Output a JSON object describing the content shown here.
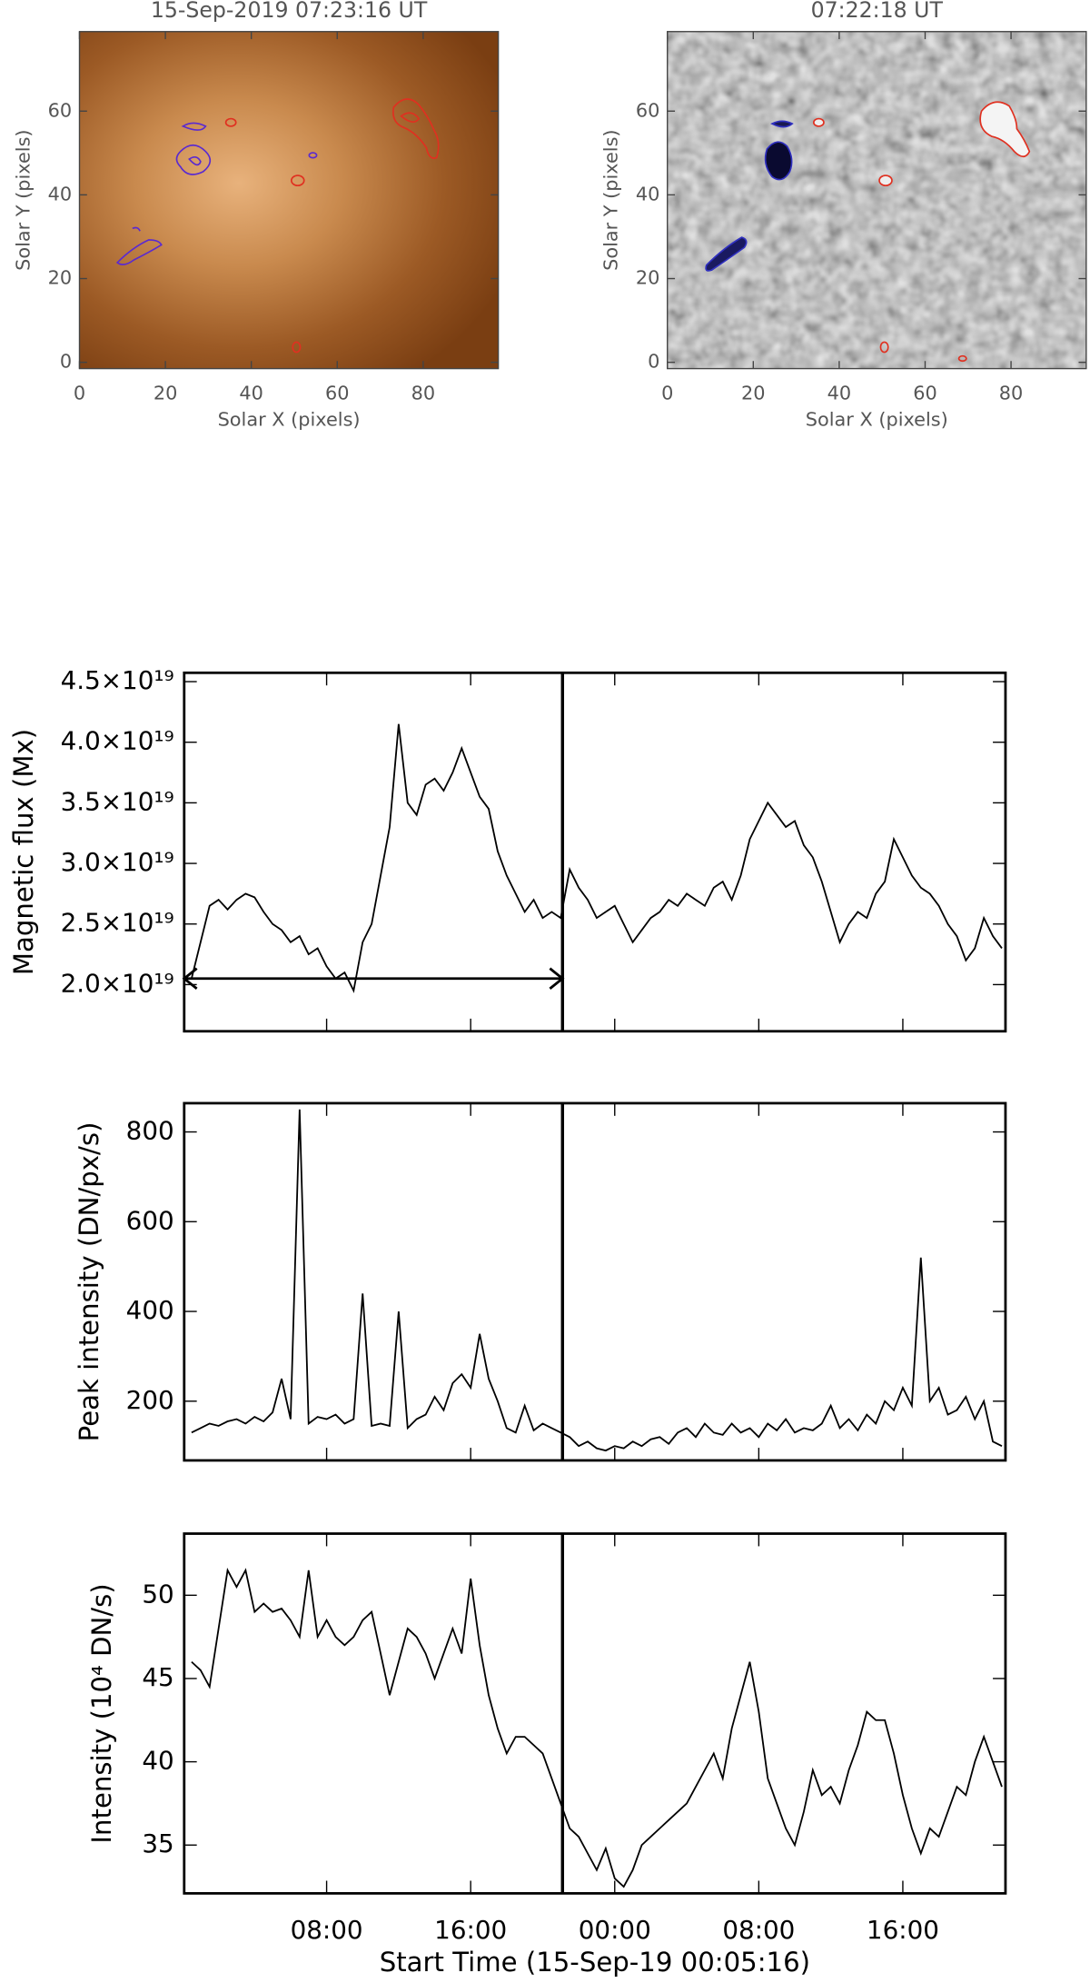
{
  "chart_data": [
    {
      "type": "image",
      "title": "15-Sep-2019 07:23:16 UT",
      "colormap": "copper",
      "xlabel": "Solar X (pixels)",
      "ylabel": "Solar Y (pixels)",
      "xlim": [
        0,
        97.5
      ],
      "ylim": [
        -1.5,
        79
      ],
      "xticks": [
        0,
        20,
        40,
        60,
        80
      ],
      "yticks": [
        0,
        20,
        40,
        60
      ]
    },
    {
      "type": "image",
      "title": "07:22:18 UT",
      "colormap": "gray",
      "xlabel": "Solar X (pixels)",
      "ylabel": "Solar Y (pixels)",
      "xlim": [
        0,
        97.5
      ],
      "ylim": [
        -1.5,
        79
      ],
      "xticks": [
        0,
        20,
        40,
        60,
        80
      ],
      "yticks": [
        0,
        20,
        40,
        60
      ]
    },
    {
      "type": "line",
      "ylabel": "Magnetic flux (Mx)",
      "color": "#000000",
      "ylim": [
        1.615e+19,
        4.573e+19
      ],
      "yticks": [
        {
          "value": 2e+19,
          "label": "2.0×10¹⁹"
        },
        {
          "value": 2.5e+19,
          "label": "2.5×10¹⁹"
        },
        {
          "value": 3e+19,
          "label": "3.0×10¹⁹"
        },
        {
          "value": 3.5e+19,
          "label": "3.5×10¹⁹"
        },
        {
          "value": 4e+19,
          "label": "4.0×10¹⁹"
        },
        {
          "value": 4.5e+19,
          "label": "4.5×10¹⁹"
        }
      ],
      "arrow_y": 2.05e+19,
      "values": [
        2.05e+19,
        2.35e+19,
        2.65e+19,
        2.7e+19,
        2.62e+19,
        2.7e+19,
        2.75e+19,
        2.72e+19,
        2.6e+19,
        2.5e+19,
        2.45e+19,
        2.35e+19,
        2.4e+19,
        2.25e+19,
        2.3e+19,
        2.15e+19,
        2.05e+19,
        2.1e+19,
        1.95e+19,
        2.35e+19,
        2.5e+19,
        2.9e+19,
        3.3e+19,
        4.15e+19,
        3.5e+19,
        3.4e+19,
        3.65e+19,
        3.7e+19,
        3.6e+19,
        3.75e+19,
        3.95e+19,
        3.75e+19,
        3.55e+19,
        3.45e+19,
        3.1e+19,
        2.9e+19,
        2.75e+19,
        2.6e+19,
        2.7e+19,
        2.55e+19,
        2.6e+19,
        2.55e+19,
        2.95e+19,
        2.8e+19,
        2.7e+19,
        2.55e+19,
        2.6e+19,
        2.65e+19,
        2.5e+19,
        2.35e+19,
        2.45e+19,
        2.55e+19,
        2.6e+19,
        2.7e+19,
        2.65e+19,
        2.75e+19,
        2.7e+19,
        2.65e+19,
        2.8e+19,
        2.85e+19,
        2.7e+19,
        2.9e+19,
        3.2e+19,
        3.35e+19,
        3.5e+19,
        3.4e+19,
        3.3e+19,
        3.35e+19,
        3.15e+19,
        3.05e+19,
        2.85e+19,
        2.6e+19,
        2.35e+19,
        2.5e+19,
        2.6e+19,
        2.55e+19,
        2.75e+19,
        2.85e+19,
        3.2e+19,
        3.05e+19,
        2.9e+19,
        2.8e+19,
        2.75e+19,
        2.65e+19,
        2.5e+19,
        2.4e+19,
        2.2e+19,
        2.3e+19,
        2.55e+19,
        2.4e+19,
        2.3e+19
      ]
    },
    {
      "type": "line",
      "ylabel": "Peak intensity (DN/px/s)",
      "color": "#000000",
      "ylim": [
        68,
        864
      ],
      "yticks": [
        200,
        400,
        600,
        800
      ],
      "values": [
        130,
        140,
        150,
        145,
        155,
        160,
        150,
        165,
        155,
        175,
        250,
        160,
        850,
        150,
        165,
        160,
        170,
        150,
        160,
        440,
        145,
        150,
        145,
        400,
        140,
        160,
        170,
        210,
        180,
        240,
        260,
        230,
        350,
        250,
        200,
        140,
        130,
        190,
        135,
        150,
        140,
        130,
        120,
        100,
        110,
        95,
        90,
        100,
        95,
        110,
        100,
        115,
        120,
        105,
        130,
        140,
        120,
        150,
        130,
        125,
        150,
        130,
        140,
        120,
        150,
        135,
        160,
        130,
        140,
        135,
        150,
        190,
        140,
        160,
        135,
        170,
        150,
        200,
        180,
        230,
        190,
        520,
        200,
        230,
        170,
        180,
        210,
        160,
        200,
        110,
        100
      ]
    },
    {
      "type": "line",
      "ylabel": "Intensity (10⁴ DN/s)",
      "xlabel": "Start Time (15-Sep-19 00:05:16)",
      "color": "#000000",
      "ylim": [
        32.1,
        53.7
      ],
      "yticks": [
        35,
        40,
        45,
        50
      ],
      "xlim": [
        0.09,
        45.7
      ],
      "xticks": [
        {
          "value": 8,
          "label": "08:00"
        },
        {
          "value": 16,
          "label": "16:00"
        },
        {
          "value": 24,
          "label": "00:00"
        },
        {
          "value": 32,
          "label": "08:00"
        },
        {
          "value": 40,
          "label": "16:00"
        }
      ],
      "marker_x": 21.1,
      "x": [
        0.5,
        1,
        1.5,
        2,
        2.5,
        3,
        3.5,
        4,
        4.5,
        5,
        5.5,
        6,
        6.5,
        7,
        7.5,
        8,
        8.5,
        9,
        9.5,
        10,
        10.5,
        11,
        11.5,
        12,
        12.5,
        13,
        13.5,
        14,
        14.5,
        15,
        15.5,
        16,
        16.5,
        17,
        17.5,
        18,
        18.5,
        19,
        19.5,
        20,
        20.5,
        21,
        21.5,
        22,
        22.5,
        23,
        23.5,
        24,
        24.5,
        25,
        25.5,
        26,
        26.5,
        27,
        27.5,
        28,
        28.5,
        29,
        29.5,
        30,
        30.5,
        31,
        31.5,
        32,
        32.5,
        33,
        33.5,
        34,
        34.5,
        35,
        35.5,
        36,
        36.5,
        37,
        37.5,
        38,
        38.5,
        39,
        39.5,
        40,
        40.5,
        41,
        41.5,
        42,
        42.5,
        43,
        43.5,
        44,
        44.5,
        45,
        45.5
      ],
      "values": [
        46,
        45.5,
        44.5,
        48,
        51.5,
        50.5,
        51.5,
        49,
        49.5,
        49,
        49.2,
        48.5,
        47.5,
        51.5,
        47.5,
        48.5,
        47.5,
        47,
        47.5,
        48.5,
        49,
        46.5,
        44,
        46,
        48,
        47.5,
        46.5,
        45,
        46.5,
        48,
        46.5,
        51,
        47,
        44,
        42,
        40.5,
        41.5,
        41.5,
        41,
        40.5,
        39,
        37.5,
        36,
        35.5,
        34.5,
        33.5,
        34.8,
        33,
        32.5,
        33.5,
        35,
        35.5,
        36,
        36.5,
        37,
        37.5,
        38.5,
        39.5,
        40.5,
        39,
        42,
        44,
        46,
        43,
        39,
        37.5,
        36,
        35,
        37,
        39.5,
        38,
        38.5,
        37.5,
        39.5,
        41,
        43,
        42.5,
        42.5,
        40.5,
        38,
        36,
        34.5,
        36,
        35.5,
        37,
        38.5,
        38,
        40,
        41.5,
        40,
        38.5
      ]
    }
  ]
}
